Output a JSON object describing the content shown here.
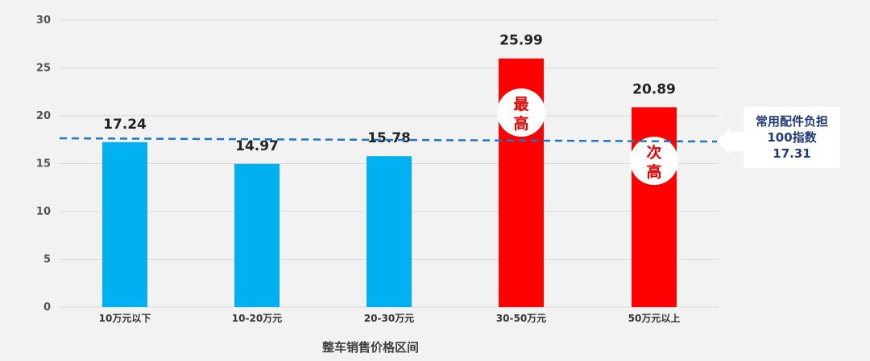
{
  "chart_data": {
    "type": "bar",
    "categories": [
      "10万元以下",
      "10-20万元",
      "20-30万元",
      "30-50万元",
      "50万元以上"
    ],
    "values": [
      17.24,
      14.97,
      15.78,
      25.99,
      20.89
    ],
    "value_labels": [
      "17.24",
      "14.97",
      "15.78",
      "25.99",
      "20.89"
    ],
    "bar_colors": [
      "#00b0f0",
      "#00b0f0",
      "#00b0f0",
      "#ff0000",
      "#ff0000"
    ],
    "xlabel": "整车销售价格区间",
    "ylabel": "",
    "ylim": [
      0,
      30
    ],
    "yticks": [
      0,
      5,
      10,
      15,
      20,
      25,
      30
    ],
    "grid": true,
    "reference_line": {
      "value": 17.31,
      "color": "#1f77c8",
      "style": "dashed",
      "label_lines": [
        "常用配件负担",
        "100指数",
        "17.31"
      ]
    },
    "annotations": [
      {
        "category_index": 3,
        "text_lines": [
          "最",
          "高"
        ]
      },
      {
        "category_index": 4,
        "text_lines": [
          "次",
          "高"
        ]
      }
    ]
  }
}
